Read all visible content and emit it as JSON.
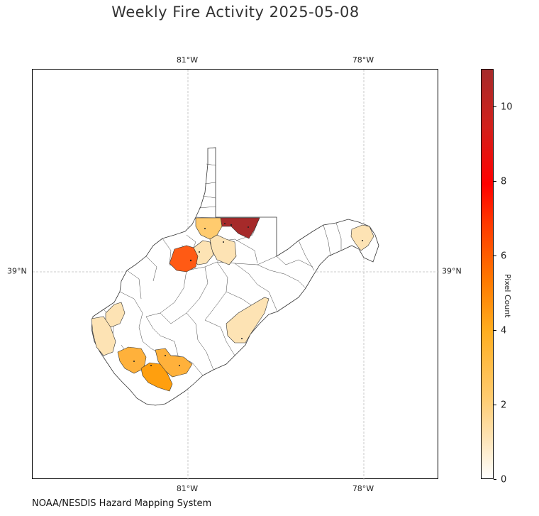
{
  "title": "Weekly Fire Activity 2025-05-08",
  "credit": "NOAA/NESDIS Hazard Mapping System",
  "map": {
    "region": "West Virginia counties",
    "gridlines": true,
    "lon_ticks": [
      "81°W",
      "78°W"
    ],
    "lat_ticks": [
      "39°N"
    ]
  },
  "colorbar": {
    "label": "Pixel Count",
    "ticks": [
      "0",
      "2",
      "4",
      "6",
      "8",
      "10"
    ],
    "range": [
      0,
      11
    ],
    "colors": [
      "#ffffff",
      "#fde3b4",
      "#ffcb6e",
      "#ffae1f",
      "#ff7a00",
      "#ff3a00",
      "#ff0000",
      "#a62a2a"
    ]
  },
  "highlighted_counties": [
    {
      "name": "north-dark",
      "value": 11
    },
    {
      "name": "central-west-orange",
      "value": 6
    },
    {
      "name": "south-orange",
      "value": 4
    },
    {
      "name": "south-light-orange-1",
      "value": 3
    },
    {
      "name": "south-light-orange-2",
      "value": 3
    },
    {
      "name": "north-tan",
      "value": 2
    },
    {
      "name": "central-pale-1",
      "value": 1
    },
    {
      "name": "central-pale-2",
      "value": 1
    },
    {
      "name": "east-pale",
      "value": 1
    },
    {
      "name": "west-pale-1",
      "value": 1
    },
    {
      "name": "west-pale-2",
      "value": 1
    },
    {
      "name": "southeast-pale",
      "value": 1
    }
  ]
}
